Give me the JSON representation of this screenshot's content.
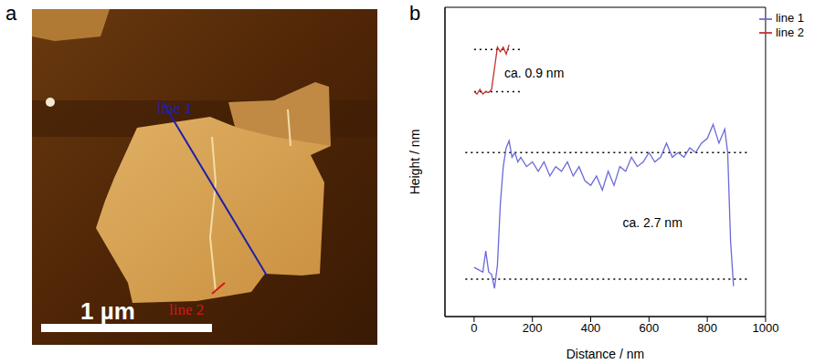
{
  "image": {
    "panel": "a",
    "lines": [
      {
        "name": "line 1",
        "color": "#1f1fa8"
      },
      {
        "name": "line 2",
        "color": "#d01818"
      }
    ],
    "scale_bar": "1 µm"
  },
  "chart_data": {
    "panel": "b",
    "type": "line",
    "x_label": "Distance / nm",
    "y_label": "Height / nm",
    "xlim": [
      -100,
      1000
    ],
    "xticks": [
      0,
      200,
      400,
      600,
      800,
      1000
    ],
    "ylim": [
      -0.8,
      5.8
    ],
    "yticks": [],
    "tick_labels": "x",
    "grid": false,
    "legend": "top-right",
    "series": [
      {
        "name": "line 1",
        "color": "#6a6ad8",
        "x": [
          0,
          15,
          30,
          40,
          50,
          60,
          70,
          80,
          90,
          100,
          110,
          120,
          130,
          140,
          150,
          160,
          180,
          200,
          220,
          240,
          260,
          280,
          300,
          320,
          340,
          360,
          380,
          400,
          420,
          440,
          460,
          480,
          500,
          520,
          540,
          560,
          580,
          600,
          620,
          640,
          660,
          680,
          700,
          720,
          740,
          760,
          780,
          800,
          820,
          840,
          860,
          870,
          880,
          890
        ],
        "values": [
          0.25,
          0.2,
          0.15,
          0.6,
          0.15,
          0.1,
          -0.2,
          0.3,
          1.6,
          2.4,
          2.8,
          2.95,
          2.6,
          2.7,
          2.5,
          2.6,
          2.4,
          2.5,
          2.3,
          2.5,
          2.2,
          2.4,
          2.3,
          2.5,
          2.2,
          2.4,
          2.1,
          2.0,
          2.2,
          1.9,
          2.3,
          2.0,
          2.4,
          2.3,
          2.6,
          2.4,
          2.5,
          2.7,
          2.5,
          2.6,
          2.9,
          2.6,
          2.7,
          2.6,
          2.8,
          2.7,
          2.9,
          3.0,
          3.3,
          2.9,
          3.2,
          2.7,
          0.8,
          -0.15
        ]
      },
      {
        "name": "line 2",
        "color": "#c0302a",
        "x": [
          0,
          10,
          20,
          30,
          40,
          50,
          60,
          70,
          80,
          90,
          100,
          110,
          120
        ],
        "values": [
          4.0,
          3.95,
          4.05,
          3.95,
          4.0,
          3.98,
          4.05,
          4.5,
          4.95,
          4.85,
          4.95,
          4.8,
          5.0
        ]
      }
    ],
    "reference_lines": [
      {
        "x": [
          0,
          160
        ],
        "y": 4.0
      },
      {
        "x": [
          0,
          160
        ],
        "y": 4.9
      },
      {
        "x": [
          -30,
          940
        ],
        "y": 2.7
      },
      {
        "x": [
          -30,
          940
        ],
        "y": 0
      }
    ],
    "annotations": [
      {
        "text": "ca. 0.9 nm",
        "x": 206,
        "y": 4.4
      },
      {
        "text": "ca. 2.7 nm",
        "x": 612,
        "y": 1.2
      }
    ]
  }
}
